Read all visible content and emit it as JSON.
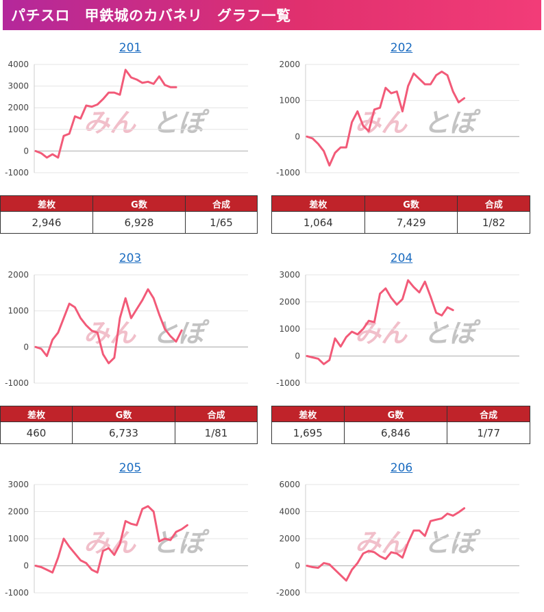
{
  "header": {
    "title": "パチスロ　甲鉄城のカバネリ　グラフ一覧"
  },
  "watermark": {
    "left": "みん",
    "right": "とぽ"
  },
  "table_headers": [
    "差枚",
    "G数",
    "合成"
  ],
  "colors": {
    "line": "#f25a78",
    "header_red": "#c0232a",
    "link": "#1a6bc0"
  },
  "machines": [
    {
      "id": "201",
      "stats": [
        "2,946",
        "6,928",
        "1/65"
      ]
    },
    {
      "id": "202",
      "stats": [
        "1,064",
        "7,429",
        "1/82"
      ]
    },
    {
      "id": "203",
      "stats": [
        "460",
        "6,733",
        "1/81"
      ]
    },
    {
      "id": "204",
      "stats": [
        "1,695",
        "6,846",
        "1/77"
      ]
    },
    {
      "id": "205",
      "stats": [
        "",
        "",
        ""
      ]
    },
    {
      "id": "206",
      "stats": [
        "",
        "",
        ""
      ]
    }
  ],
  "chart_data": [
    {
      "type": "line",
      "title": "201",
      "yticks": [
        4000,
        3000,
        2000,
        1000,
        0,
        -1000
      ],
      "ylim": [
        -1000,
        4000
      ],
      "series": [
        {
          "values": [
            0,
            -100,
            -300,
            -150,
            -300,
            700,
            800,
            1600,
            1500,
            2100,
            2050,
            2150,
            2400,
            2700,
            2700,
            2600,
            3750,
            3400,
            3300,
            3150,
            3200,
            3100,
            3450,
            3050,
            2950,
            2946
          ]
        }
      ]
    },
    {
      "type": "line",
      "title": "202",
      "yticks": [
        2000,
        1000,
        0,
        -1000
      ],
      "ylim": [
        -1000,
        2000
      ],
      "series": [
        {
          "values": [
            0,
            -50,
            -200,
            -400,
            -800,
            -450,
            -300,
            -300,
            400,
            700,
            300,
            150,
            750,
            800,
            1350,
            1200,
            1250,
            700,
            1400,
            1750,
            1600,
            1450,
            1450,
            1700,
            1800,
            1700,
            1250,
            950,
            1064
          ]
        }
      ]
    },
    {
      "type": "line",
      "title": "203",
      "yticks": [
        2000,
        1000,
        0,
        -1000
      ],
      "ylim": [
        -1000,
        2000
      ],
      "series": [
        {
          "values": [
            0,
            -50,
            -250,
            200,
            400,
            800,
            1200,
            1100,
            800,
            600,
            450,
            400,
            -200,
            -450,
            -300,
            800,
            1350,
            800,
            1050,
            1300,
            1600,
            1350,
            900,
            500,
            300,
            150,
            460
          ]
        }
      ]
    },
    {
      "type": "line",
      "title": "204",
      "yticks": [
        3000,
        2000,
        1000,
        0,
        -1000
      ],
      "ylim": [
        -1000,
        3000
      ],
      "series": [
        {
          "values": [
            0,
            -50,
            -100,
            -300,
            -150,
            650,
            350,
            700,
            900,
            800,
            1000,
            1300,
            1250,
            2300,
            2500,
            2150,
            1900,
            2100,
            2800,
            2550,
            2350,
            2750,
            2200,
            1600,
            1500,
            1800,
            1695
          ]
        }
      ]
    },
    {
      "type": "line",
      "title": "205",
      "yticks": [
        3000,
        2000,
        1000,
        0,
        -1000
      ],
      "ylim": [
        -1000,
        3000
      ],
      "series": [
        {
          "values": [
            0,
            -50,
            -150,
            -250,
            300,
            1000,
            700,
            450,
            200,
            100,
            -150,
            -250,
            550,
            650,
            400,
            800,
            1650,
            1550,
            1500,
            2100,
            2200,
            2000,
            900,
            1000,
            950,
            1250,
            1350,
            1500
          ]
        }
      ]
    },
    {
      "type": "line",
      "title": "206",
      "yticks": [
        6000,
        4000,
        2000,
        0,
        -2000
      ],
      "ylim": [
        -2000,
        6000
      ],
      "series": [
        {
          "values": [
            0,
            -100,
            -150,
            200,
            100,
            -300,
            -700,
            -1100,
            -300,
            200,
            900,
            1100,
            1000,
            700,
            500,
            1000,
            900,
            600,
            1700,
            2600,
            2600,
            2200,
            3300,
            3400,
            3500,
            3850,
            3700,
            3950,
            4250
          ]
        }
      ]
    }
  ]
}
